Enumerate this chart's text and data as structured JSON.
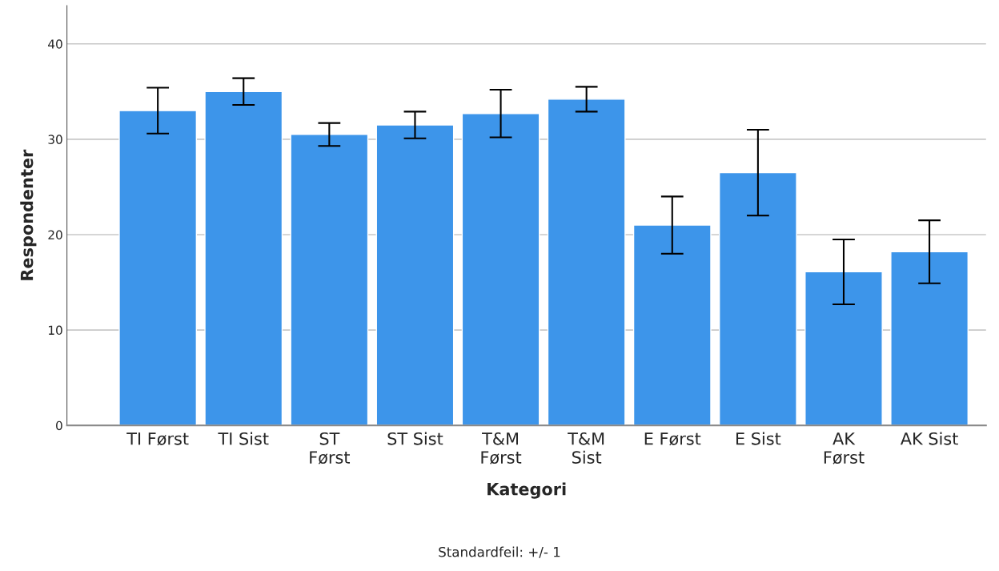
{
  "chart_data": {
    "type": "bar",
    "xlabel": "Kategori",
    "ylabel": "Respondenter",
    "categories": [
      "TI Først",
      "TI Sist",
      "ST\nFørst",
      "ST Sist",
      "T&M\nFørst",
      "T&M\nSist",
      "E Først",
      "E Sist",
      "AK\nFørst",
      "AK Sist"
    ],
    "values": [
      33.0,
      35.0,
      30.5,
      31.5,
      32.7,
      34.2,
      21.0,
      26.5,
      16.1,
      18.2
    ],
    "errors": [
      2.4,
      1.4,
      1.2,
      1.4,
      2.5,
      1.3,
      3.0,
      4.5,
      3.4,
      3.3
    ],
    "color": "#3d95ea",
    "ylim": [
      0,
      44
    ],
    "yticks": [
      0,
      10,
      20,
      30,
      40
    ],
    "grid": "y",
    "annotations": [
      "Standardfeil: +/- 1"
    ]
  }
}
